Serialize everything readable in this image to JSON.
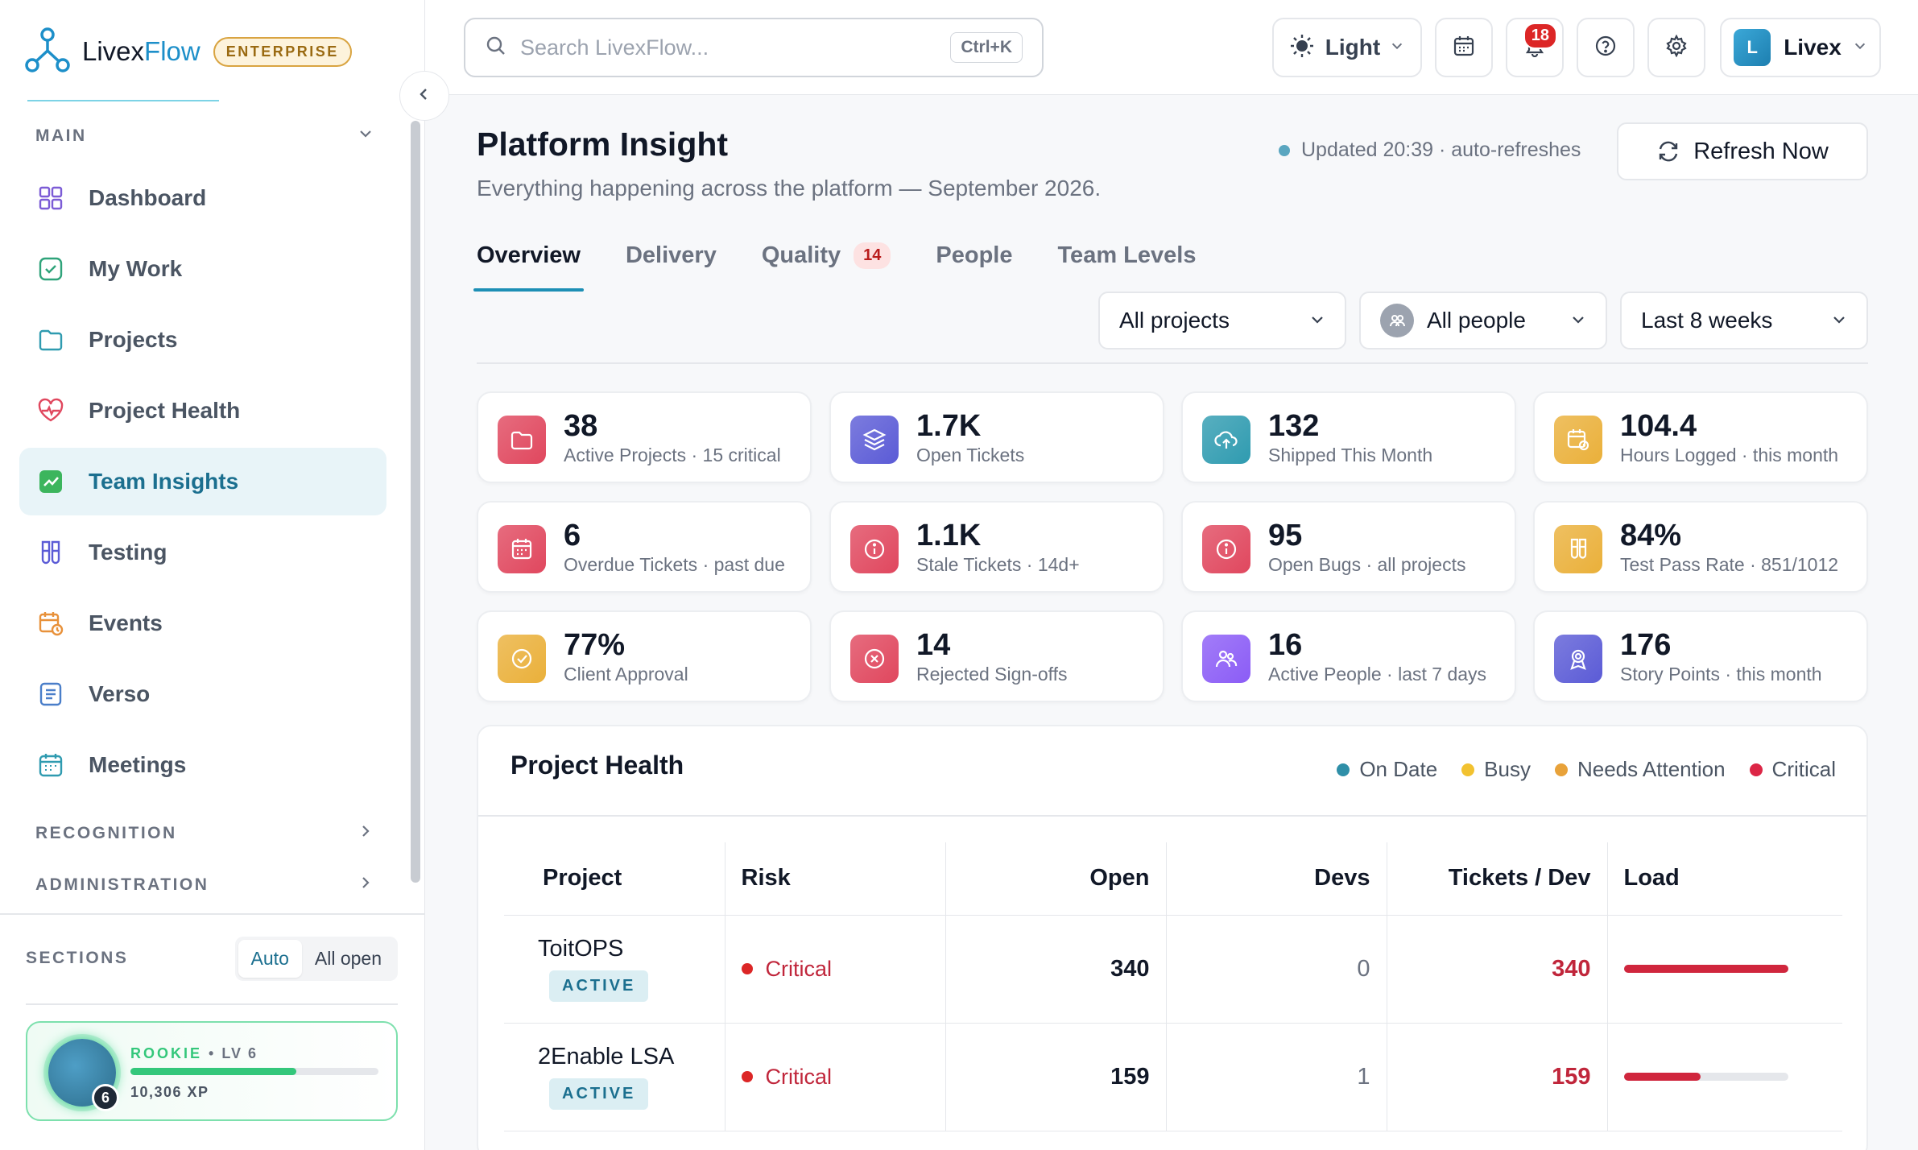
{
  "brand": {
    "name_a": "Livex",
    "name_b": "Flow",
    "badge": "ENTERPRISE"
  },
  "sidebar": {
    "main_label": "MAIN",
    "items": [
      {
        "label": "Dashboard"
      },
      {
        "label": "My Work"
      },
      {
        "label": "Projects"
      },
      {
        "label": "Project Health"
      },
      {
        "label": "Team Insights"
      },
      {
        "label": "Testing"
      },
      {
        "label": "Events"
      },
      {
        "label": "Verso"
      },
      {
        "label": "Meetings"
      }
    ],
    "recognition_label": "RECOGNITION",
    "administration_label": "ADMINISTRATION",
    "sections_label": "SECTIONS",
    "sections_auto": "Auto",
    "sections_all": "All open",
    "xp": {
      "rank": "ROOKIE",
      "sep": "•",
      "level": "LV 6",
      "points": "10,306 XP",
      "level_badge": "6",
      "progress": 0.67
    }
  },
  "topbar": {
    "search_placeholder": "Search LivexFlow...",
    "search_shortcut": "Ctrl+K",
    "theme_label": "Light",
    "notifications_count": "18",
    "user_initial": "L",
    "user_name": "Livex"
  },
  "page": {
    "title": "Platform Insight",
    "subtitle": "Everything happening across the platform — September 2026.",
    "updated": "Updated 20:39 · auto-refreshes",
    "refresh_label": "Refresh Now",
    "tabs": [
      {
        "label": "Overview"
      },
      {
        "label": "Delivery"
      },
      {
        "label": "Quality",
        "badge": "14"
      },
      {
        "label": "People"
      },
      {
        "label": "Team Levels"
      }
    ],
    "filters": {
      "projects": "All projects",
      "people": "All people",
      "range": "Last 8 weeks"
    }
  },
  "kpis": [
    {
      "value": "38",
      "label": "Active Projects · 15 critical",
      "icon": "folder-icon",
      "color": "#e0475e"
    },
    {
      "value": "1.7K",
      "label": "Open Tickets",
      "icon": "layers-icon",
      "color": "#5b5bd6"
    },
    {
      "value": "132",
      "label": "Shipped This Month",
      "icon": "cloud-upload-icon",
      "color": "#2f9bb0"
    },
    {
      "value": "104.4",
      "label": "Hours Logged · this month",
      "icon": "calendar-clock-icon",
      "color": "#eab03a"
    },
    {
      "value": "6",
      "label": "Overdue Tickets · past due",
      "icon": "calendar-icon",
      "color": "#e0475e"
    },
    {
      "value": "1.1K",
      "label": "Stale Tickets · 14d+",
      "icon": "info-icon",
      "color": "#e0475e"
    },
    {
      "value": "95",
      "label": "Open Bugs · all projects",
      "icon": "info-icon",
      "color": "#e0475e"
    },
    {
      "value": "84%",
      "label": "Test Pass Rate · 851/1012",
      "icon": "test-tubes-icon",
      "color": "#eab03a"
    },
    {
      "value": "77%",
      "label": "Client Approval",
      "icon": "check-circle-icon",
      "color": "#eab03a"
    },
    {
      "value": "14",
      "label": "Rejected Sign-offs",
      "icon": "x-circle-icon",
      "color": "#e0475e"
    },
    {
      "value": "16",
      "label": "Active People · last 7 days",
      "icon": "users-icon",
      "color": "#8b5cf6"
    },
    {
      "value": "176",
      "label": "Story Points · this month",
      "icon": "award-icon",
      "color": "#5b5bd6"
    }
  ],
  "project_health": {
    "title": "Project Health",
    "legend": [
      {
        "label": "On Date",
        "color": "#2f8fa8"
      },
      {
        "label": "Busy",
        "color": "#f2c230"
      },
      {
        "label": "Needs Attention",
        "color": "#e8a23a"
      },
      {
        "label": "Critical",
        "color": "#dc2646"
      }
    ],
    "columns": [
      "Project",
      "Risk",
      "Open",
      "Devs",
      "Tickets / Dev",
      "Load"
    ],
    "rows": [
      {
        "project": "ToitOPS",
        "status": "ACTIVE",
        "risk": "Critical",
        "open": "340",
        "devs": "0",
        "tpd": "340",
        "load": 1.0
      },
      {
        "project": "2Enable LSA",
        "status": "ACTIVE",
        "risk": "Critical",
        "open": "159",
        "devs": "1",
        "tpd": "159",
        "load": 0.47
      }
    ]
  }
}
